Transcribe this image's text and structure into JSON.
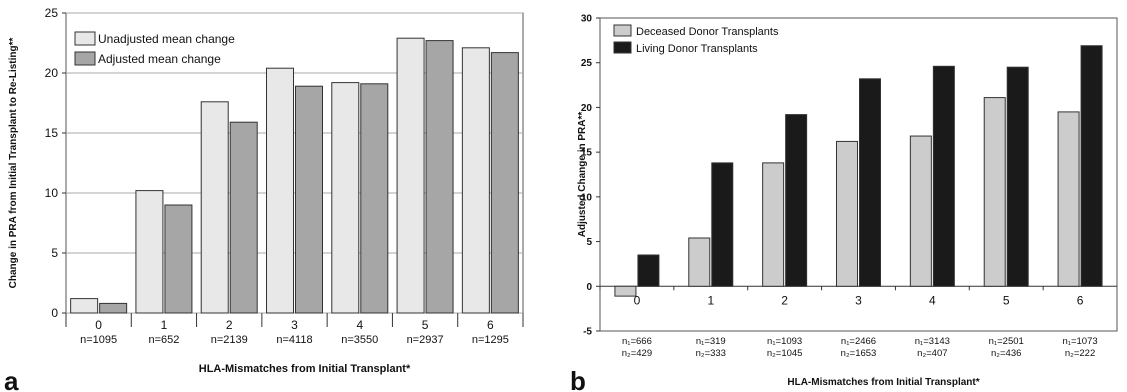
{
  "chart_data": [
    {
      "type": "bar",
      "panel_label": "a",
      "xlabel": "HLA-Mismatches from Initial Transplant*",
      "ylabel": "Change in PRA from Initial Transplant to Re-Listing**",
      "ylim": [
        0,
        25
      ],
      "yticks": [
        "0",
        "5",
        "10",
        "15",
        "20",
        "25"
      ],
      "categories": [
        "0",
        "1",
        "2",
        "3",
        "4",
        "5",
        "6"
      ],
      "n_labels": [
        "n=1095",
        "n=652",
        "n=2139",
        "n=4118",
        "n=3550",
        "n=2937",
        "n=1295"
      ],
      "legend_position": "top-left",
      "series": [
        {
          "name": "Unadjusted mean change",
          "color": "#e8e8e8",
          "values": [
            1.2,
            10.2,
            17.6,
            20.4,
            19.2,
            22.9,
            22.1
          ]
        },
        {
          "name": "Adjusted mean change",
          "color": "#a6a6a6",
          "values": [
            0.8,
            9.0,
            15.9,
            18.9,
            19.1,
            22.7,
            21.7
          ]
        }
      ]
    },
    {
      "type": "bar",
      "panel_label": "b",
      "xlabel": "HLA-Mismatches from Initial Transplant*",
      "ylabel": "Adjusted Change in PRA**",
      "ylim": [
        -5,
        30
      ],
      "yticks": [
        "-5",
        "0",
        "5",
        "10",
        "15",
        "20",
        "25",
        "30"
      ],
      "categories": [
        "0",
        "1",
        "2",
        "3",
        "4",
        "5",
        "6"
      ],
      "n1_labels": [
        "n₁=666",
        "n₁=319",
        "n₁=1093",
        "n₁=2466",
        "n₁=3143",
        "n₁=2501",
        "n₁=1073"
      ],
      "n2_labels": [
        "n₂=429",
        "n₂=333",
        "n₂=1045",
        "n₂=1653",
        "n₂=407",
        "n₂=436",
        "n₂=222"
      ],
      "legend_position": "top-left",
      "series": [
        {
          "name": "Deceased Donor Transplants",
          "color": "#cccccc",
          "values": [
            -1.1,
            5.4,
            13.8,
            16.2,
            16.8,
            21.1,
            19.5
          ]
        },
        {
          "name": "Living Donor Transplants",
          "color": "#1a1a1a",
          "values": [
            3.5,
            13.8,
            19.2,
            23.2,
            24.6,
            24.5,
            26.9
          ]
        }
      ]
    }
  ]
}
